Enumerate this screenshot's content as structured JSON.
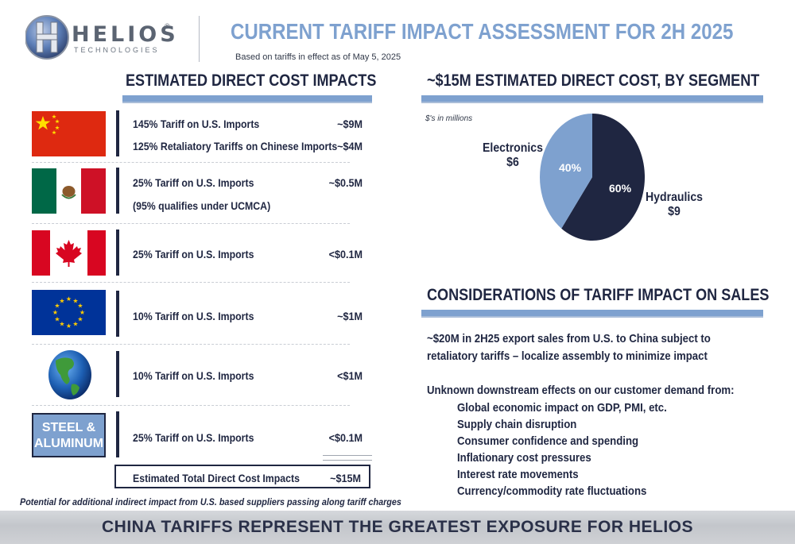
{
  "header": {
    "logo_name": "HELIOS",
    "logo_registered": "®",
    "logo_sub": "TECHNOLOGIES",
    "title": "CURRENT TARIFF IMPACT ASSESSMENT FOR 2H 2025",
    "subtitle": "Based on tariffs in effect as of May 5, 2025"
  },
  "left": {
    "section_title": "ESTIMATED DIRECT COST IMPACTS",
    "rows": [
      {
        "flag": "china-flag",
        "lines": [
          {
            "label": "145% Tariff on U.S. Imports",
            "value": "~$9M"
          },
          {
            "label": "125% Retaliatory Tariffs on Chinese Imports",
            "value": "~$4M"
          }
        ]
      },
      {
        "flag": "mexico-flag",
        "lines": [
          {
            "label": "25% Tariff on U.S. Imports",
            "value": "~$0.5M"
          },
          {
            "label": "(95% qualifies under UCMCA)",
            "value": ""
          }
        ]
      },
      {
        "flag": "canada-flag",
        "lines": [
          {
            "label": "25% Tariff on U.S. Imports",
            "value": "<$0.1M"
          }
        ]
      },
      {
        "flag": "eu-flag",
        "lines": [
          {
            "label": "10% Tariff on U.S. Imports",
            "value": "~$1M"
          }
        ]
      },
      {
        "flag": "globe-icon",
        "lines": [
          {
            "label": "10% Tariff on U.S. Imports",
            "value": "<$1M"
          }
        ]
      },
      {
        "flag": "steel-aluminum-box",
        "box_label_1": "STEEL &",
        "box_label_2": "ALUMINUM",
        "lines": [
          {
            "label": "25% Tariff on U.S. Imports",
            "value": "<$0.1M"
          }
        ]
      }
    ],
    "total_label": "Estimated Total Direct Cost Impacts",
    "total_value": "~$15M",
    "footnote": "Potential for additional indirect impact from U.S. based suppliers passing along tariff charges"
  },
  "right": {
    "section_title": "~$15M ESTIMATED DIRECT COST, BY SEGMENT",
    "units": "$'s in millions",
    "pie": {
      "type": "pie",
      "slices": [
        {
          "name": "Hydraulics",
          "amount_label": "$9",
          "value": 60,
          "percent_label": "60%",
          "color": "#1f2641"
        },
        {
          "name": "Electronics",
          "amount_label": "$6",
          "value": 40,
          "percent_label": "40%",
          "color": "#7ea1cf"
        }
      ]
    },
    "considerations_title": "CONSIDERATIONS OF TARIFF IMPACT ON SALES",
    "para1_line1": "~$20M in 2H25 export sales from U.S. to China subject to",
    "para1_line2": "retaliatory tariffs – localize assembly to minimize impact",
    "para2_intro": "Unknown downstream effects on our customer demand from:",
    "bullets": [
      "Global economic impact on GDP, PMI, etc.",
      "Supply chain disruption",
      "Consumer confidence and spending",
      "Inflationary cost pressures",
      "Interest rate movements",
      "Currency/commodity rate fluctuations"
    ]
  },
  "footer": {
    "text": "CHINA TARIFFS REPRESENT THE GREATEST EXPOSURE FOR HELIOS"
  },
  "colors": {
    "navy": "#1f2641",
    "accent_blue": "#7ea1cf"
  }
}
